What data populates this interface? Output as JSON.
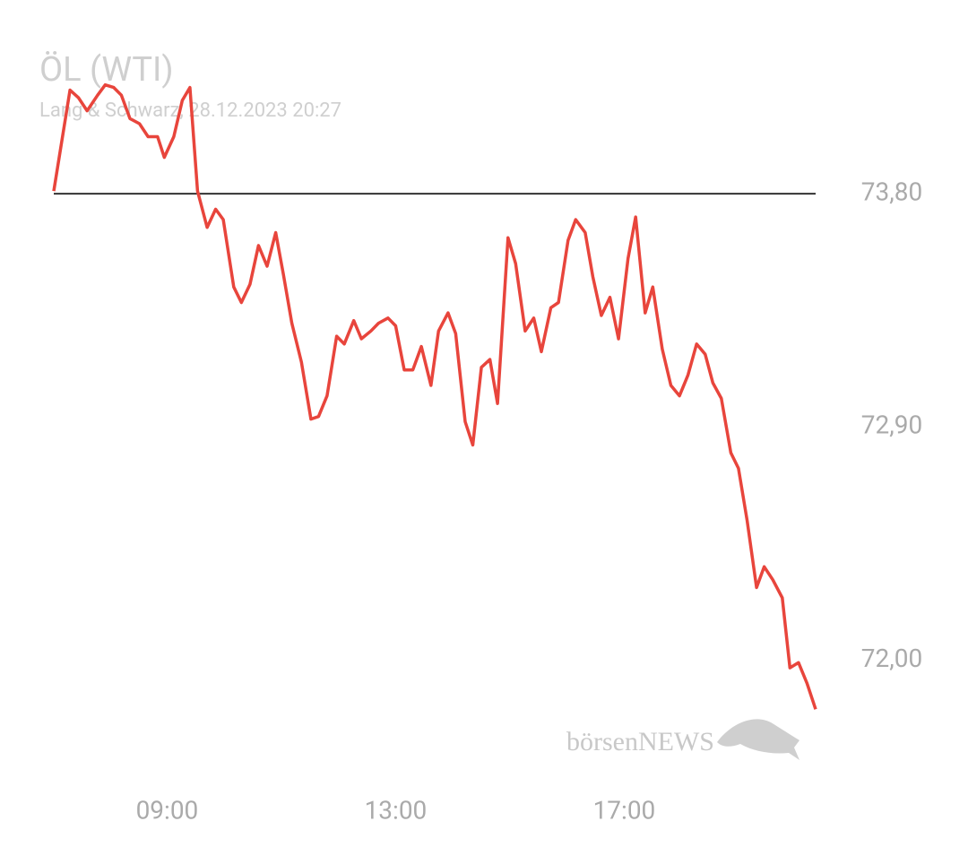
{
  "chart_data": {
    "type": "line",
    "title": "ÖL (WTI)",
    "subtitle": "Lang & Schwarz, 28.12.2023 20:27",
    "watermark": "börsenNEWS",
    "x": [
      "07:01",
      "07:18",
      "07:27",
      "07:36",
      "07:47",
      "07:55",
      "08:04",
      "08:12",
      "08:21",
      "08:31",
      "08:40",
      "08:50",
      "08:57",
      "09:07",
      "09:16",
      "09:24",
      "09:32",
      "09:42",
      "09:51",
      "09:59",
      "10:10",
      "10:18",
      "10:27",
      "10:36",
      "10:45",
      "10:54",
      "11:02",
      "11:11",
      "11:21",
      "11:31",
      "11:39",
      "11:48",
      "11:58",
      "12:06",
      "12:16",
      "12:24",
      "12:34",
      "12:42",
      "12:52",
      "13:00",
      "13:09",
      "13:18",
      "13:27",
      "13:37",
      "13:45",
      "13:55",
      "14:03",
      "14:13",
      "14:21",
      "14:30",
      "14:39",
      "14:47",
      "14:58",
      "15:06",
      "15:16",
      "15:25",
      "15:33",
      "15:43",
      "15:51",
      "16:01",
      "16:09",
      "16:19",
      "16:27",
      "16:36",
      "16:45",
      "16:54",
      "17:04",
      "17:12",
      "17:22",
      "17:30",
      "17:40",
      "17:49",
      "17:58",
      "18:07",
      "18:16",
      "18:25",
      "18:33",
      "18:42",
      "18:52",
      "19:00",
      "19:09",
      "19:19",
      "19:27",
      "19:36",
      "19:46",
      "19:54",
      "20:03",
      "20:12",
      "20:21"
    ],
    "series": [
      {
        "name": "ÖL (WTI)",
        "color": "#e8453c",
        "values": [
          73.81,
          74.2,
          74.17,
          74.12,
          74.18,
          74.22,
          74.21,
          74.18,
          74.09,
          74.07,
          74.02,
          74.02,
          73.94,
          74.02,
          74.16,
          74.21,
          73.81,
          73.67,
          73.74,
          73.7,
          73.44,
          73.38,
          73.45,
          73.6,
          73.52,
          73.65,
          73.49,
          73.3,
          73.15,
          72.93,
          72.94,
          73.02,
          73.25,
          73.22,
          73.31,
          73.24,
          73.27,
          73.3,
          73.32,
          73.29,
          73.12,
          73.12,
          73.21,
          73.06,
          73.27,
          73.34,
          73.26,
          72.92,
          72.83,
          73.13,
          73.16,
          72.99,
          73.63,
          73.53,
          73.27,
          73.32,
          73.19,
          73.36,
          73.38,
          73.62,
          73.7,
          73.65,
          73.48,
          73.33,
          73.4,
          73.24,
          73.55,
          73.71,
          73.34,
          73.44,
          73.2,
          73.06,
          73.02,
          73.1,
          73.22,
          73.18,
          73.07,
          73.01,
          72.8,
          72.74,
          72.54,
          72.28,
          72.36,
          72.31,
          72.24,
          71.97,
          71.99,
          71.91,
          71.81
        ]
      }
    ],
    "reference_line": 73.8,
    "reference_color": "#333333",
    "xlim": [
      "07:01",
      "20:21"
    ],
    "xticks": [
      "09:00",
      "13:00",
      "17:00"
    ],
    "ylim": [
      71.78,
      74.34
    ],
    "yticks": [
      {
        "value": 72.0,
        "label": "72,00"
      },
      {
        "value": 72.9,
        "label": "72,90"
      },
      {
        "value": 73.8,
        "label": "73,80"
      }
    ]
  }
}
